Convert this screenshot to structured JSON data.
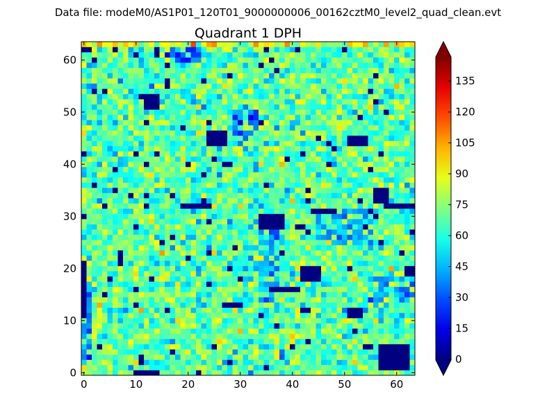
{
  "suptitle": "Data file: modeM0/AS1P01_120T01_9000000006_00162cztM0_level2_quad_clean.evt",
  "chart_data": {
    "type": "heatmap",
    "title": "Quadrant 1 DPH",
    "xlabel": "",
    "ylabel": "",
    "grid_size": [
      64,
      64
    ],
    "xlim": [
      -0.5,
      63.5
    ],
    "ylim": [
      -0.5,
      63.5
    ],
    "xticks": [
      0,
      10,
      20,
      30,
      40,
      50,
      60
    ],
    "yticks": [
      0,
      10,
      20,
      30,
      40,
      50,
      60
    ],
    "xtick_labels": [
      "0",
      "10",
      "20",
      "30",
      "40",
      "50",
      "60"
    ],
    "ytick_labels": [
      "0",
      "10",
      "20",
      "30",
      "40",
      "50",
      "60"
    ],
    "colormap": "jet",
    "vmin": 0,
    "vmax": 147,
    "typical_value_mean": 68,
    "typical_value_spread": 13,
    "colorbar": {
      "ticks": [
        0,
        15,
        30,
        45,
        60,
        75,
        90,
        105,
        120,
        135
      ],
      "tick_labels": [
        "0",
        "15",
        "30",
        "45",
        "60",
        "75",
        "90",
        "105",
        "120",
        "135"
      ],
      "extend": "both"
    },
    "zero_regions": [
      [
        57,
        1,
        62,
        5
      ],
      [
        0,
        11,
        0,
        21
      ],
      [
        34,
        28,
        38,
        30
      ],
      [
        42,
        18,
        45,
        20
      ],
      [
        51,
        11,
        53,
        12
      ],
      [
        56,
        33,
        58,
        35
      ],
      [
        58,
        32,
        63,
        32
      ],
      [
        19,
        32,
        24,
        32
      ],
      [
        24,
        44,
        27,
        46
      ],
      [
        12,
        51,
        14,
        53
      ],
      [
        51,
        44,
        54,
        45
      ],
      [
        0,
        62,
        1,
        62
      ],
      [
        10,
        0,
        13,
        0
      ],
      [
        27,
        13,
        30,
        13
      ],
      [
        44,
        31,
        48,
        31
      ],
      [
        36,
        16,
        41,
        16
      ],
      [
        7,
        21,
        7,
        23
      ],
      [
        62,
        19,
        63,
        20
      ]
    ],
    "low_regions": [
      [
        16,
        60,
        22,
        63,
        30
      ],
      [
        29,
        45,
        33,
        50,
        35
      ],
      [
        34,
        14,
        37,
        30,
        40
      ],
      [
        45,
        25,
        48,
        31,
        40
      ],
      [
        0,
        1,
        1,
        16,
        40
      ],
      [
        55,
        14,
        63,
        18,
        40
      ],
      [
        49,
        25,
        55,
        31,
        42
      ]
    ]
  }
}
